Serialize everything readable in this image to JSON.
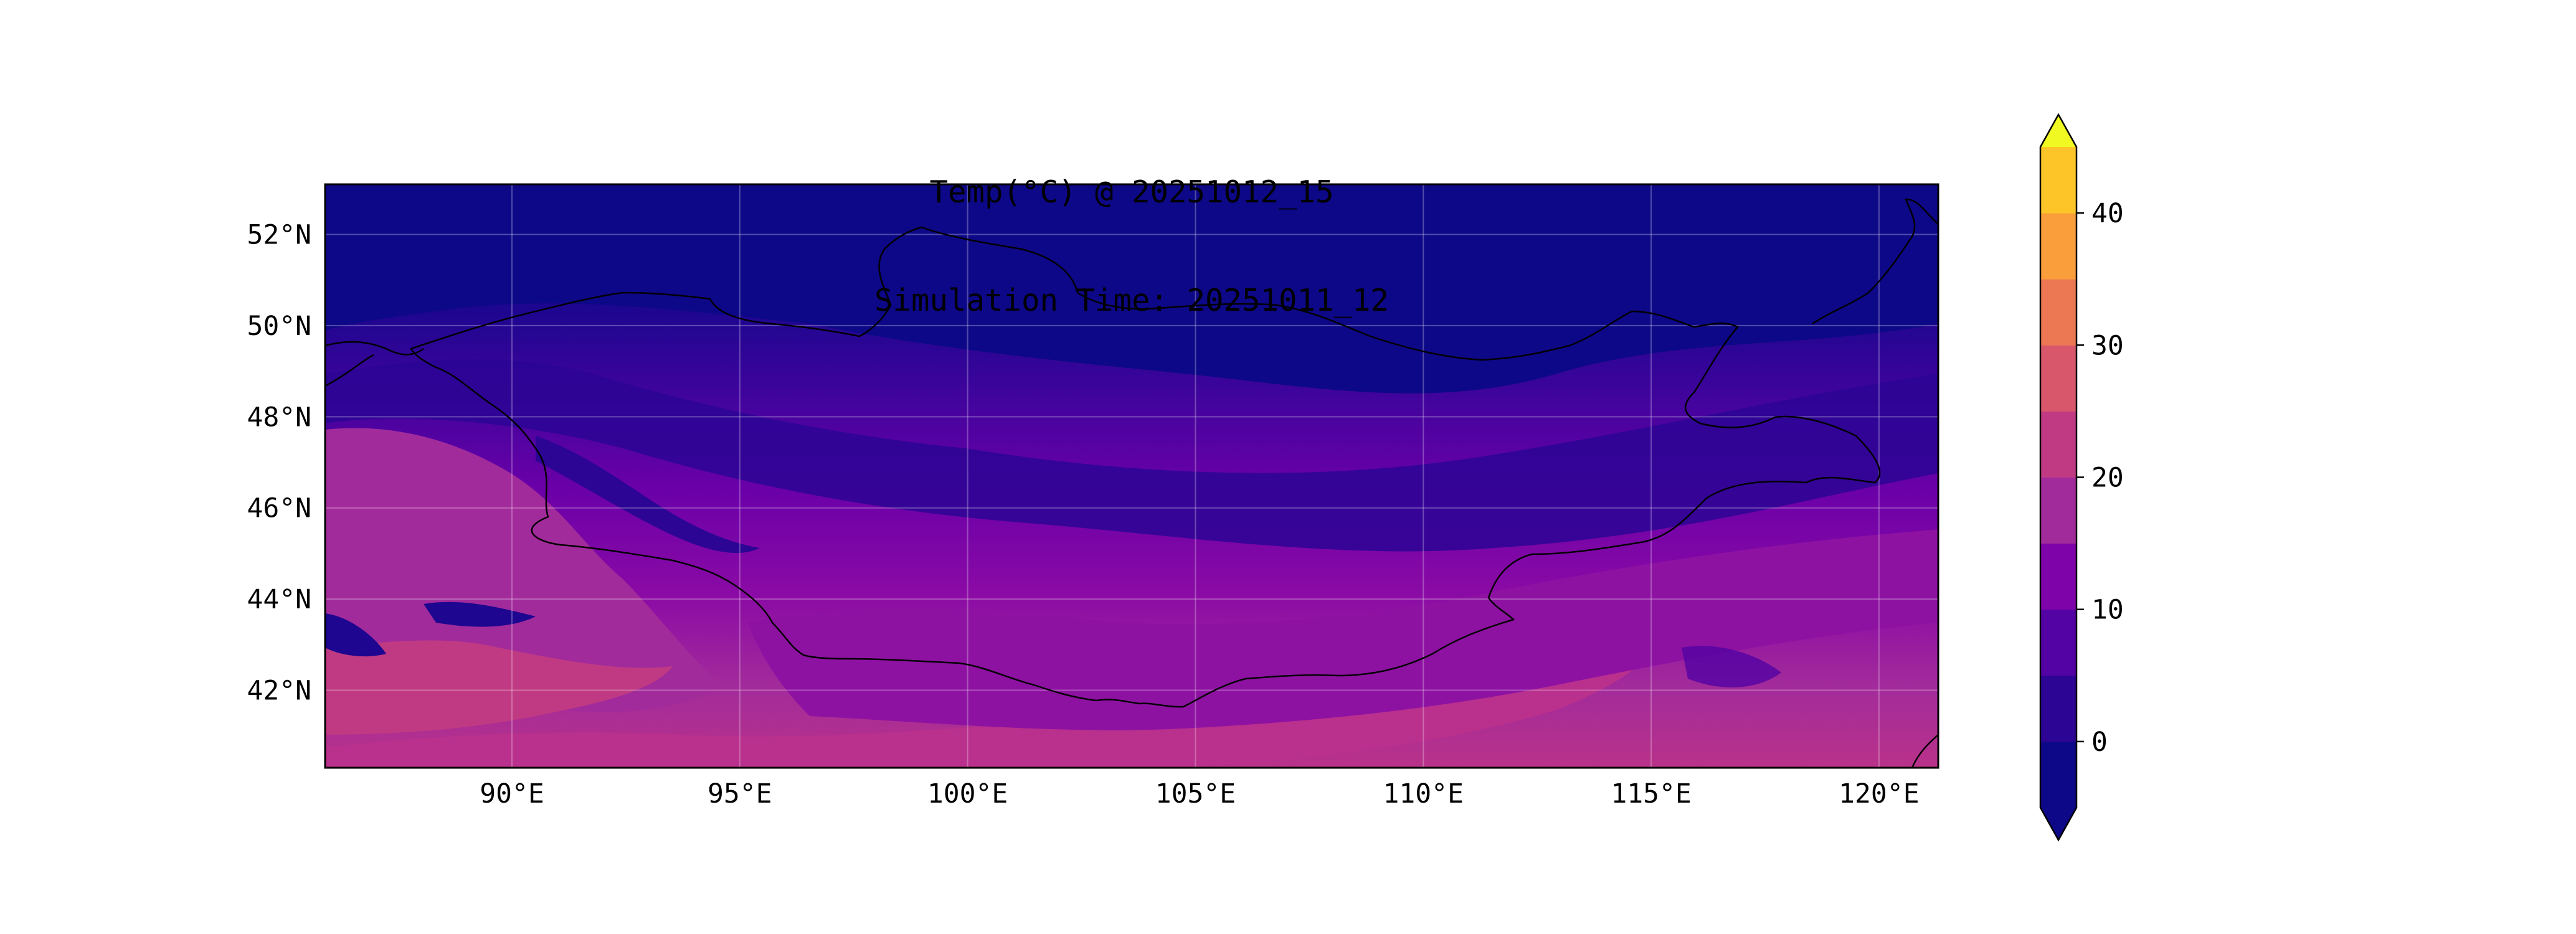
{
  "title": {
    "line1": "Temp(°C) @ 20251012_15",
    "line2": "Simulation Time: 20251011_12"
  },
  "map": {
    "extent_lon": [
      85.9,
      121.3
    ],
    "extent_lat": [
      40.3,
      53.1
    ],
    "x_ticks": [
      {
        "value": 90,
        "label": "90°E"
      },
      {
        "value": 95,
        "label": "95°E"
      },
      {
        "value": 100,
        "label": "100°E"
      },
      {
        "value": 105,
        "label": "105°E"
      },
      {
        "value": 110,
        "label": "110°E"
      },
      {
        "value": 115,
        "label": "115°E"
      },
      {
        "value": 120,
        "label": "120°E"
      }
    ],
    "y_ticks": [
      {
        "value": 52,
        "label": "52°N"
      },
      {
        "value": 50,
        "label": "50°N"
      },
      {
        "value": 48,
        "label": "48°N"
      },
      {
        "value": 46,
        "label": "46°N"
      },
      {
        "value": 44,
        "label": "44°N"
      },
      {
        "value": 42,
        "label": "42°N"
      }
    ],
    "grid": true,
    "features": [
      "country-borders",
      "coastline"
    ]
  },
  "colorbar": {
    "levels": [
      -5,
      0,
      5,
      10,
      15,
      20,
      25,
      30,
      35,
      40,
      45
    ],
    "extend": "both",
    "colors": [
      "#0d0887",
      "#2c0594",
      "#5302a3",
      "#7e03a8",
      "#a22b9b",
      "#c03a83",
      "#d8576b",
      "#ec7853",
      "#fa9e3b",
      "#fdc527",
      "#f0f921"
    ],
    "under_color": "#0d0887",
    "over_color": "#f0f921",
    "tick_values": [
      0,
      10,
      20,
      30,
      40
    ],
    "tick_labels": [
      "0",
      "10",
      "20",
      "30",
      "40"
    ]
  }
}
